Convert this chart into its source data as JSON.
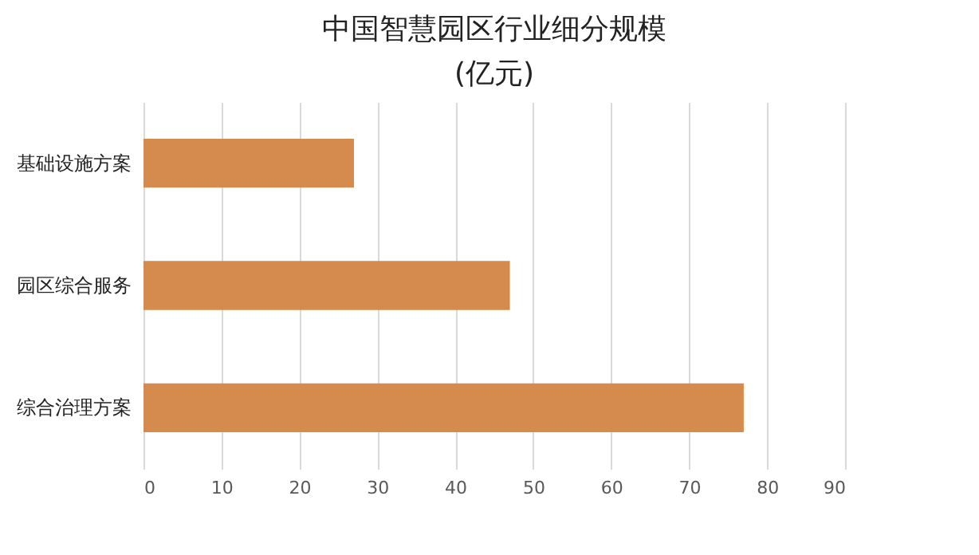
{
  "chart_data": {
    "type": "bar",
    "orientation": "horizontal",
    "title": "中国智慧园区行业细分规模",
    "subtitle": "(亿元)",
    "categories": [
      "基础设施方案",
      "园区综合服务",
      "综合治理方案"
    ],
    "values": [
      27,
      47,
      77
    ],
    "color": "#d58b4d",
    "xlim": [
      0,
      90
    ],
    "xticks": [
      0,
      10,
      20,
      30,
      40,
      50,
      60,
      70,
      80,
      90
    ],
    "grid": "x"
  }
}
